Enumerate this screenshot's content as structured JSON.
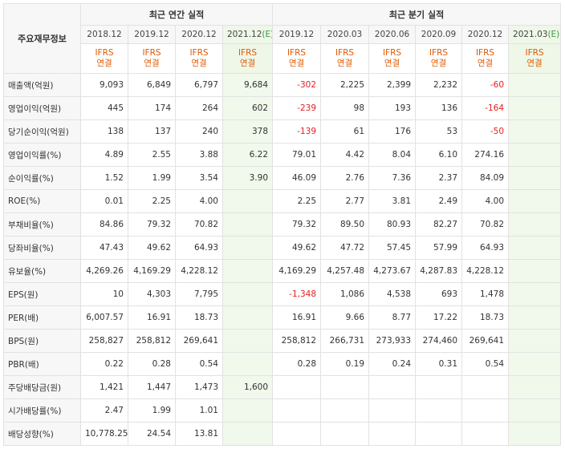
{
  "corner_label": "주요재무정보",
  "annual_header": "최근 연간 실적",
  "quarter_header": "최근 분기 실적",
  "annual_periods": [
    "2018.12",
    "2019.12",
    "2020.12",
    "2021.12"
  ],
  "annual_estimate_mark": "(E)",
  "quarter_periods": [
    "2019.12",
    "2020.03",
    "2020.06",
    "2020.09",
    "2020.12",
    "2021.03"
  ],
  "quarter_estimate_mark": "(E)",
  "ifrs_line1": "IFRS",
  "ifrs_line2": "연결",
  "rows": [
    {
      "label": "매출액(억원)",
      "annual": [
        "9,093",
        "6,849",
        "6,797",
        "9,684"
      ],
      "quarter": [
        "-302",
        "2,225",
        "2,399",
        "2,232",
        "-60",
        ""
      ]
    },
    {
      "label": "영업이익(억원)",
      "annual": [
        "445",
        "174",
        "264",
        "602"
      ],
      "quarter": [
        "-239",
        "98",
        "193",
        "136",
        "-164",
        ""
      ]
    },
    {
      "label": "당기순이익(억원)",
      "annual": [
        "138",
        "137",
        "240",
        "378"
      ],
      "quarter": [
        "-139",
        "61",
        "176",
        "53",
        "-50",
        ""
      ]
    },
    {
      "label": "영업이익률(%)",
      "annual": [
        "4.89",
        "2.55",
        "3.88",
        "6.22"
      ],
      "quarter": [
        "79.01",
        "4.42",
        "8.04",
        "6.10",
        "274.16",
        ""
      ]
    },
    {
      "label": "순이익률(%)",
      "annual": [
        "1.52",
        "1.99",
        "3.54",
        "3.90"
      ],
      "quarter": [
        "46.09",
        "2.76",
        "7.36",
        "2.37",
        "84.09",
        ""
      ]
    },
    {
      "label": "ROE(%)",
      "annual": [
        "0.01",
        "2.25",
        "4.00",
        ""
      ],
      "quarter": [
        "2.25",
        "2.77",
        "3.81",
        "2.49",
        "4.00",
        ""
      ]
    },
    {
      "label": "부채비율(%)",
      "annual": [
        "84.86",
        "79.32",
        "70.82",
        ""
      ],
      "quarter": [
        "79.32",
        "89.50",
        "80.93",
        "82.27",
        "70.82",
        ""
      ]
    },
    {
      "label": "당좌비율(%)",
      "annual": [
        "47.43",
        "49.62",
        "64.93",
        ""
      ],
      "quarter": [
        "49.62",
        "47.72",
        "57.45",
        "57.99",
        "64.93",
        ""
      ]
    },
    {
      "label": "유보율(%)",
      "annual": [
        "4,269.26",
        "4,169.29",
        "4,228.12",
        ""
      ],
      "quarter": [
        "4,169.29",
        "4,257.48",
        "4,273.67",
        "4,287.83",
        "4,228.12",
        ""
      ]
    },
    {
      "label": "EPS(원)",
      "annual": [
        "10",
        "4,303",
        "7,795",
        ""
      ],
      "quarter": [
        "-1,348",
        "1,086",
        "4,538",
        "693",
        "1,478",
        ""
      ]
    },
    {
      "label": "PER(배)",
      "annual": [
        "6,007.57",
        "16.91",
        "18.73",
        ""
      ],
      "quarter": [
        "16.91",
        "9.66",
        "8.77",
        "17.22",
        "18.73",
        ""
      ]
    },
    {
      "label": "BPS(원)",
      "annual": [
        "258,827",
        "258,812",
        "269,641",
        ""
      ],
      "quarter": [
        "258,812",
        "266,731",
        "273,933",
        "274,460",
        "269,641",
        ""
      ]
    },
    {
      "label": "PBR(배)",
      "annual": [
        "0.22",
        "0.28",
        "0.54",
        ""
      ],
      "quarter": [
        "0.28",
        "0.19",
        "0.24",
        "0.31",
        "0.54",
        ""
      ]
    },
    {
      "label": "주당배당금(원)",
      "annual": [
        "1,421",
        "1,447",
        "1,473",
        "1,600"
      ],
      "quarter": [
        "",
        "",
        "",
        "",
        "",
        ""
      ]
    },
    {
      "label": "시가배당률(%)",
      "annual": [
        "2.47",
        "1.99",
        "1.01",
        ""
      ],
      "quarter": [
        "",
        "",
        "",
        "",
        "",
        ""
      ]
    },
    {
      "label": "배당성향(%)",
      "annual": [
        "10,778.25",
        "24.54",
        "13.81",
        ""
      ],
      "quarter": [
        "",
        "",
        "",
        "",
        "",
        ""
      ]
    }
  ],
  "colors": {
    "ifrs": "#e05a00",
    "negative": "#e61e1e",
    "estimate_bg": "#f1f8ec",
    "label_bg": "#f7f7f7"
  }
}
